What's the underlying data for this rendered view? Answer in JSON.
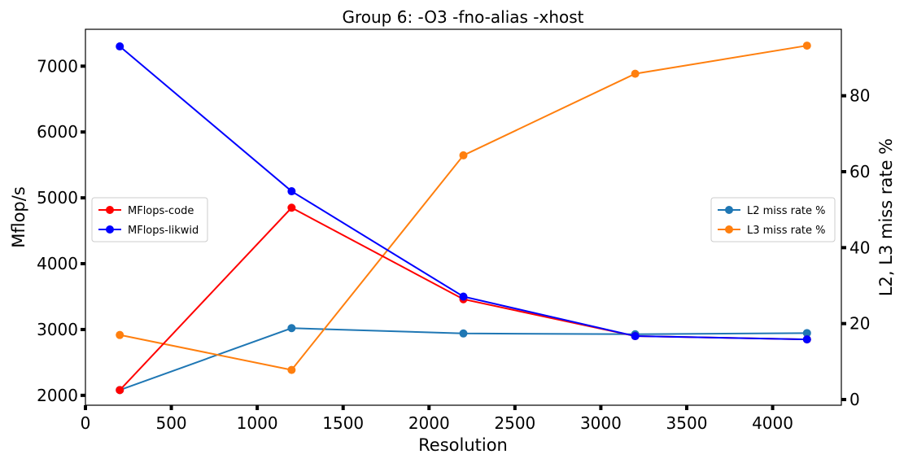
{
  "chart_data": {
    "type": "line",
    "title": "Group 6: -O3 -fno-alias -xhost",
    "xlabel": "Resolution",
    "ylabel_left": "Mflop/s",
    "ylabel_right": "L2, L3 miss rate %",
    "x": [
      200,
      1200,
      2200,
      3200,
      4200
    ],
    "xlim": [
      0,
      4400
    ],
    "xticks": [
      0,
      500,
      1000,
      1500,
      2000,
      2500,
      3000,
      3500,
      4000
    ],
    "ylim_left": [
      1850,
      7560
    ],
    "yticks_left": [
      2000,
      3000,
      4000,
      5000,
      6000,
      7000
    ],
    "ylim_right": [
      -1.5,
      97.5
    ],
    "yticks_right": [
      0,
      20,
      40,
      60,
      80
    ],
    "left_series": [
      {
        "name": "MFlops-code",
        "color": "#ff0000",
        "values": [
          2080,
          4850,
          3460,
          2900,
          2850
        ]
      },
      {
        "name": "MFlops-likwid",
        "color": "#0000ff",
        "values": [
          7300,
          5100,
          3500,
          2900,
          2850
        ]
      }
    ],
    "right_series": [
      {
        "name": "L2 miss rate %",
        "color": "#1f77b4",
        "values": [
          2.5,
          18.8,
          17.4,
          17.2,
          17.5
        ]
      },
      {
        "name": "L3 miss rate %",
        "color": "#ff7f0e",
        "values": [
          17.0,
          7.8,
          64.3,
          85.8,
          93.2
        ]
      }
    ],
    "legend_left_position": "center-left",
    "legend_right_position": "center-right",
    "grid": false
  }
}
